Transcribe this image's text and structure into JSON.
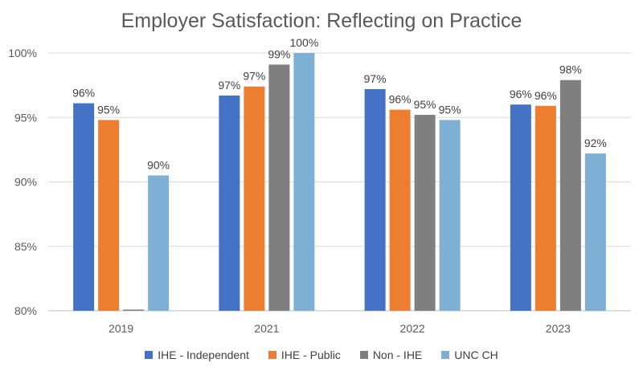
{
  "chart_data": {
    "type": "bar",
    "title": "Employer Satisfaction: Reflecting on Practice",
    "categories": [
      "2019",
      "2021",
      "2022",
      "2023"
    ],
    "ylim": [
      80,
      100
    ],
    "yticks": [
      "80%",
      "85%",
      "90%",
      "95%",
      "100%"
    ],
    "ytick_values": [
      80,
      85,
      90,
      95,
      100
    ],
    "grid": true,
    "legend_position": "bottom",
    "series": [
      {
        "name": "IHE - Independent",
        "color": "#4472C4",
        "values": [
          96.1,
          96.7,
          97.2,
          96.0
        ],
        "labels": [
          "96%",
          "97%",
          "97%",
          "96%"
        ]
      },
      {
        "name": "IHE - Public",
        "color": "#ED7D31",
        "values": [
          94.8,
          97.4,
          95.6,
          95.9
        ],
        "labels": [
          "95%",
          "97%",
          "96%",
          "96%"
        ]
      },
      {
        "name": "Non - IHE",
        "color": "#7F7F7F",
        "values": [
          80,
          99.1,
          95.2,
          97.9
        ],
        "labels": [
          "",
          "99%",
          "95%",
          "98%"
        ]
      },
      {
        "name": "UNC CH",
        "color": "#7EB0D5",
        "values": [
          90.5,
          100,
          94.8,
          92.2
        ],
        "labels": [
          "90%",
          "100%",
          "95%",
          "92%"
        ]
      }
    ]
  }
}
